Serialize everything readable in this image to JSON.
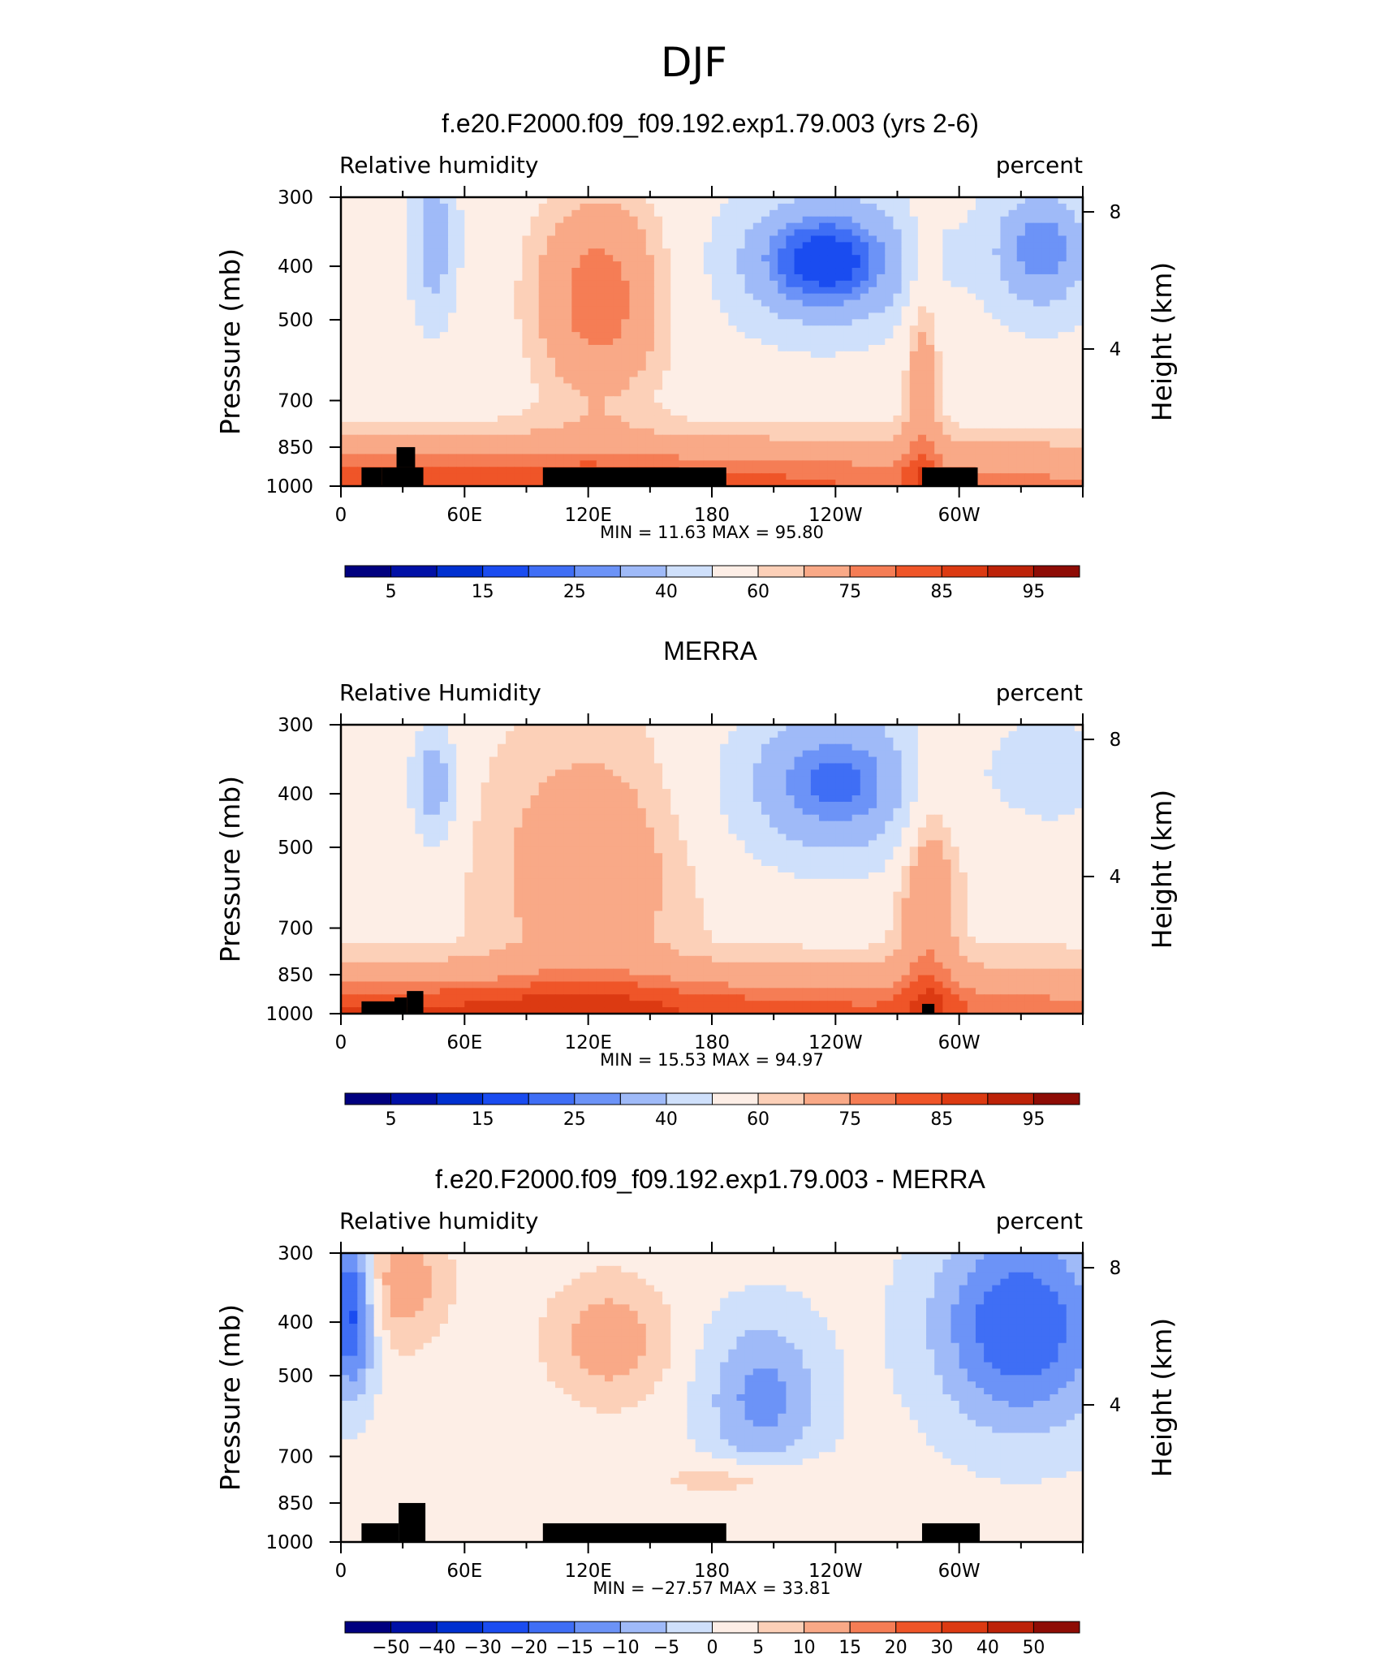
{
  "super_title": "DJF",
  "colors": {
    "abs_scale": [
      "#00007f",
      "#0010a6",
      "#0030d0",
      "#1a4cf0",
      "#3f6ef5",
      "#6c93f7",
      "#9fbaf8",
      "#cfe0fb",
      "#fdeee6",
      "#fcd0b8",
      "#f9a987",
      "#f57d55",
      "#ef5528",
      "#dc3a12",
      "#bd2208",
      "#8e0c05"
    ],
    "diff_scale": [
      "#00007f",
      "#0010a6",
      "#0030d0",
      "#1a4cf0",
      "#3f6ef5",
      "#6c93f7",
      "#9fbaf8",
      "#cfe0fb",
      "#fdeee6",
      "#fcd0b8",
      "#f9a987",
      "#f57d55",
      "#ef5528",
      "#dc3a12",
      "#bd2208",
      "#8e0c05"
    ],
    "land_mask": "#000000"
  },
  "chart_data": [
    {
      "type": "heatmap",
      "name": "model",
      "title": "f.e20.F2000.f09_f09.192.exp1.79.003 (yrs 2-6)",
      "left_label": "Relative humidity",
      "right_label": "percent",
      "ylabel": "Pressure (mb)",
      "ylabel_right": "Height (km)",
      "x_ticks": [
        "0",
        "60E",
        "120E",
        "180",
        "120W",
        "60W"
      ],
      "x_tick_values": [
        0,
        60,
        120,
        180,
        240,
        300
      ],
      "xlim": [
        0,
        360
      ],
      "y_ticks": [
        "300",
        "400",
        "500",
        "700",
        "850",
        "1000"
      ],
      "y_tick_values": [
        300,
        400,
        500,
        700,
        850,
        1000
      ],
      "ylim": [
        300,
        1000
      ],
      "height_ticks": [
        "8",
        "4"
      ],
      "height_tick_values": [
        8,
        4
      ],
      "stats": "MIN =   11.63   MAX =   95.80",
      "min": 11.63,
      "max": 95.8,
      "colorbar_labels": [
        "5",
        "15",
        "25",
        "40",
        "60",
        "75",
        "85",
        "95"
      ],
      "levels": [
        0,
        5,
        10,
        15,
        20,
        25,
        30,
        40,
        50,
        60,
        65,
        75,
        80,
        85,
        90,
        95,
        100
      ],
      "scale": "abs",
      "land_blocks": [
        [
          10,
          20,
          925,
          1000
        ],
        [
          20,
          40,
          925,
          1000
        ],
        [
          27,
          36,
          850,
          925
        ],
        [
          98,
          187,
          925,
          1000
        ],
        [
          282,
          309,
          925,
          1000
        ]
      ]
    },
    {
      "type": "heatmap",
      "name": "obs",
      "title": "MERRA",
      "left_label": "Relative Humidity",
      "right_label": "percent",
      "ylabel": "Pressure (mb)",
      "ylabel_right": "Height (km)",
      "x_ticks": [
        "0",
        "60E",
        "120E",
        "180",
        "120W",
        "60W"
      ],
      "x_tick_values": [
        0,
        60,
        120,
        180,
        240,
        300
      ],
      "xlim": [
        0,
        360
      ],
      "y_ticks": [
        "300",
        "400",
        "500",
        "700",
        "850",
        "1000"
      ],
      "y_tick_values": [
        300,
        400,
        500,
        700,
        850,
        1000
      ],
      "ylim": [
        300,
        1000
      ],
      "height_ticks": [
        "8",
        "4"
      ],
      "height_tick_values": [
        8,
        4
      ],
      "stats": "MIN =   15.53   MAX =   94.97",
      "min": 15.53,
      "max": 94.97,
      "colorbar_labels": [
        "5",
        "15",
        "25",
        "40",
        "60",
        "75",
        "85",
        "95"
      ],
      "levels": [
        0,
        5,
        10,
        15,
        20,
        25,
        30,
        40,
        50,
        60,
        65,
        75,
        80,
        85,
        90,
        95,
        100
      ],
      "scale": "abs",
      "land_blocks": [
        [
          10,
          26,
          950,
          1000
        ],
        [
          26,
          32,
          935,
          1000
        ],
        [
          32,
          40,
          910,
          1000
        ],
        [
          282,
          288,
          960,
          1000
        ]
      ]
    },
    {
      "type": "heatmap",
      "name": "diff",
      "title": "f.e20.F2000.f09_f09.192.exp1.79.003 - MERRA",
      "left_label": "Relative humidity",
      "right_label": "percent",
      "ylabel": "Pressure (mb)",
      "ylabel_right": "Height (km)",
      "x_ticks": [
        "0",
        "60E",
        "120E",
        "180",
        "120W",
        "60W"
      ],
      "x_tick_values": [
        0,
        60,
        120,
        180,
        240,
        300
      ],
      "xlim": [
        0,
        360
      ],
      "y_ticks": [
        "300",
        "400",
        "500",
        "700",
        "850",
        "1000"
      ],
      "y_tick_values": [
        300,
        400,
        500,
        700,
        850,
        1000
      ],
      "ylim": [
        300,
        1000
      ],
      "height_ticks": [
        "8",
        "4"
      ],
      "height_tick_values": [
        8,
        4
      ],
      "stats": "MIN =  −27.57   MAX =   33.81",
      "min": -27.57,
      "max": 33.81,
      "colorbar_labels": [
        "−50",
        "−40",
        "−30",
        "−20",
        "−15",
        "−10",
        "−5",
        "0",
        "5",
        "10",
        "15",
        "20",
        "30",
        "40",
        "50"
      ],
      "levels": [
        -60,
        -50,
        -40,
        -30,
        -20,
        -15,
        -10,
        -5,
        0,
        5,
        10,
        15,
        20,
        30,
        40,
        50,
        60
      ],
      "scale": "diff",
      "land_blocks": [
        [
          10,
          28,
          925,
          1000
        ],
        [
          28,
          41,
          850,
          1000
        ],
        [
          98,
          187,
          925,
          1000
        ],
        [
          282,
          310,
          925,
          1000
        ]
      ]
    }
  ]
}
